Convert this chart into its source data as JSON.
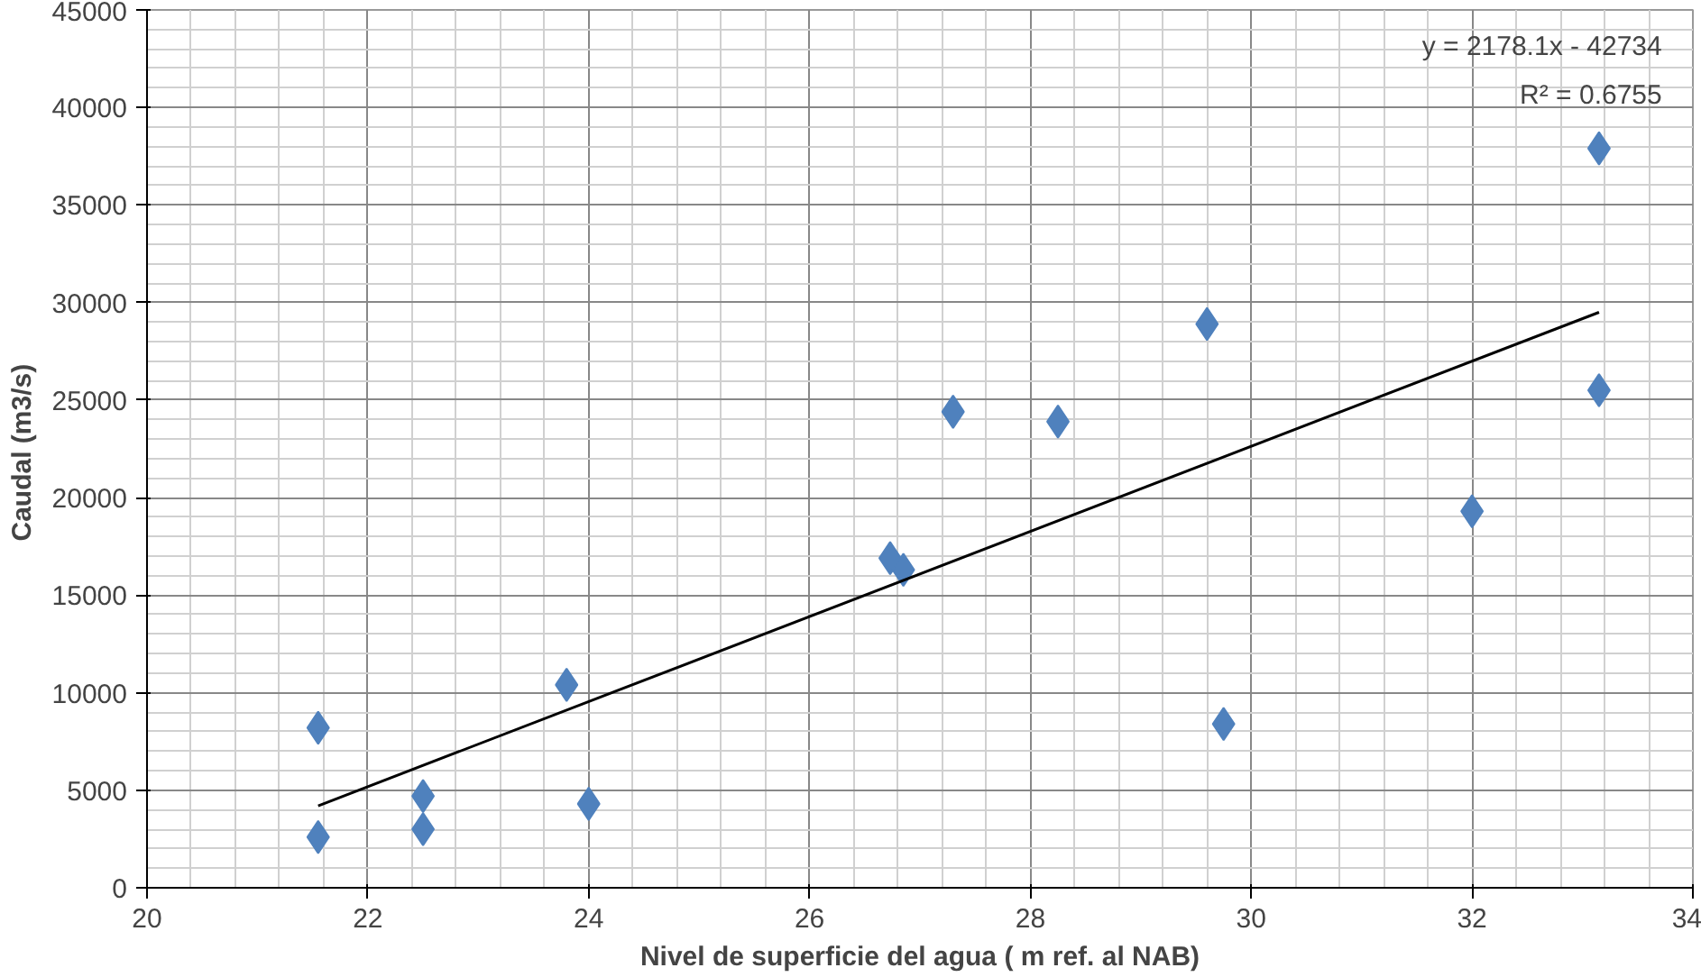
{
  "chart_data": {
    "type": "scatter",
    "xlabel": "Nivel de superficie del agua ( m ref. al NAB)",
    "ylabel": "Caudal  (m3/s)",
    "annotations": [
      "y = 2178.1x - 42734",
      "R² = 0.6755"
    ],
    "xlim": [
      20,
      34
    ],
    "xticks": [
      20,
      22,
      24,
      26,
      28,
      30,
      32,
      34
    ],
    "ylim": [
      0,
      45000
    ],
    "yticks": [
      0,
      5000,
      10000,
      15000,
      20000,
      25000,
      30000,
      35000,
      40000,
      45000
    ],
    "grid": true,
    "marker": "diamond",
    "series": [
      {
        "color": "#4f81bd",
        "x": [
          21.55,
          21.55,
          22.5,
          22.5,
          23.8,
          24.0,
          26.73,
          26.85,
          27.3,
          28.25,
          29.6,
          29.75,
          32.0,
          33.15,
          33.15
        ],
        "values": [
          8200,
          2600,
          4700,
          3000,
          10400,
          4300,
          16900,
          16300,
          24400,
          23900,
          28900,
          8400,
          19300,
          37900,
          25500
        ]
      },
      {
        "type": "line",
        "color": "#000000",
        "x": [
          21.55,
          33.15
        ],
        "values": [
          4200,
          29500
        ],
        "marker": "none",
        "line_style": "solid"
      }
    ]
  }
}
